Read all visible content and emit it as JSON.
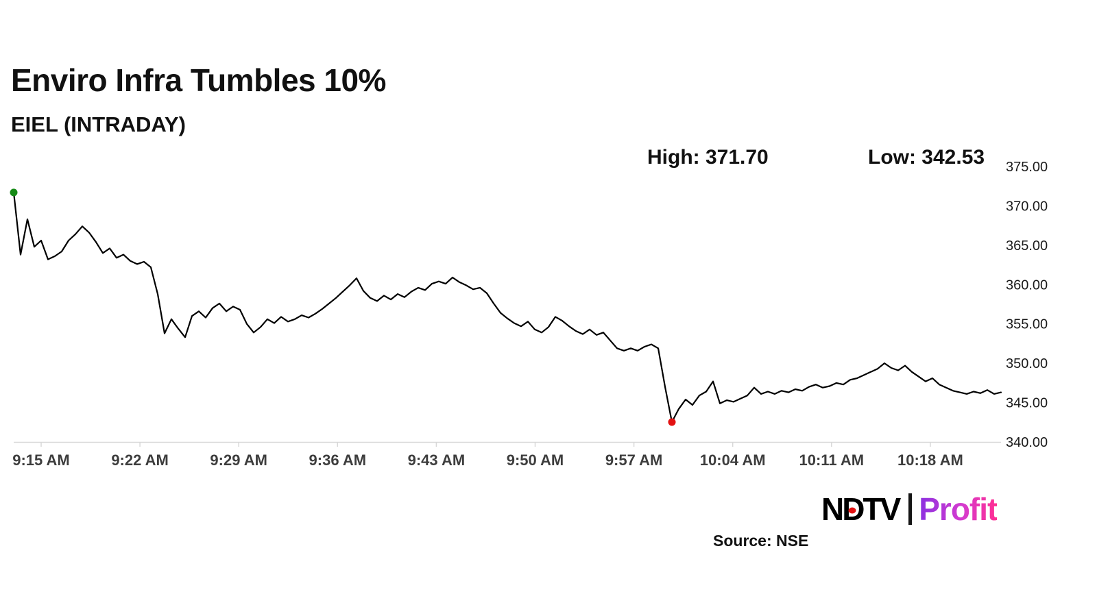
{
  "header": {
    "title": "Enviro Infra Tumbles 10%",
    "subtitle": "EIEL (INTRADAY)"
  },
  "stats": {
    "high": "High: 371.70",
    "low": "Low: 342.53"
  },
  "chart_data": {
    "type": "line",
    "title": "Enviro Infra Tumbles 10%",
    "series_name": "EIEL intraday price",
    "ylim": [
      340,
      375
    ],
    "y_ticks": [
      375,
      370,
      365,
      360,
      355,
      350,
      345,
      340
    ],
    "y_tick_labels": [
      "375.00",
      "370.00",
      "365.00",
      "360.00",
      "355.00",
      "350.00",
      "345.00",
      "340.00"
    ],
    "x_tick_labels": [
      "9:15 AM",
      "9:22 AM",
      "9:29 AM",
      "9:36 AM",
      "9:43 AM",
      "9:50 AM",
      "9:57 AM",
      "10:04 AM",
      "10:11 AM",
      "10:18 AM"
    ],
    "high": 371.7,
    "low": 342.53,
    "line_color": "#000000",
    "start_marker_color": "#168a16",
    "low_marker_color": "#e31212",
    "grid": false,
    "values": [
      371.7,
      363.8,
      368.3,
      364.8,
      365.6,
      363.2,
      363.6,
      364.2,
      365.6,
      366.4,
      367.4,
      366.6,
      365.4,
      364.0,
      364.6,
      363.4,
      363.8,
      363.0,
      362.6,
      362.9,
      362.2,
      358.8,
      353.8,
      355.6,
      354.4,
      353.3,
      356.0,
      356.6,
      355.8,
      357.0,
      357.6,
      356.6,
      357.2,
      356.8,
      355.0,
      353.9,
      354.6,
      355.6,
      355.1,
      355.9,
      355.3,
      355.6,
      356.1,
      355.8,
      356.3,
      356.9,
      357.6,
      358.3,
      359.1,
      359.9,
      360.8,
      359.2,
      358.3,
      357.9,
      358.6,
      358.1,
      358.8,
      358.4,
      359.1,
      359.6,
      359.3,
      360.1,
      360.4,
      360.1,
      360.9,
      360.3,
      359.9,
      359.4,
      359.6,
      358.9,
      357.6,
      356.4,
      355.7,
      355.1,
      354.7,
      355.3,
      354.3,
      353.9,
      354.6,
      355.9,
      355.4,
      354.7,
      354.1,
      353.7,
      354.3,
      353.6,
      353.9,
      352.9,
      351.9,
      351.6,
      351.9,
      351.6,
      352.1,
      352.4,
      351.9,
      347.0,
      342.53,
      344.2,
      345.4,
      344.7,
      345.9,
      346.4,
      347.7,
      344.9,
      345.3,
      345.1,
      345.5,
      345.9,
      346.9,
      346.1,
      346.4,
      346.1,
      346.5,
      346.3,
      346.7,
      346.5,
      347.0,
      347.3,
      346.9,
      347.1,
      347.5,
      347.3,
      347.9,
      348.1,
      348.5,
      348.9,
      349.3,
      350.0,
      349.4,
      349.1,
      349.7,
      348.9,
      348.3,
      347.7,
      348.1,
      347.3,
      346.9,
      346.5,
      346.3,
      346.1,
      346.4,
      346.2,
      346.6,
      346.1,
      346.3
    ]
  },
  "footer": {
    "source": "Source: NSE",
    "logo": {
      "ndtv_n": "N",
      "ndtv_d": "D",
      "ndtv_tv": "TV",
      "profit": "Profit"
    }
  }
}
